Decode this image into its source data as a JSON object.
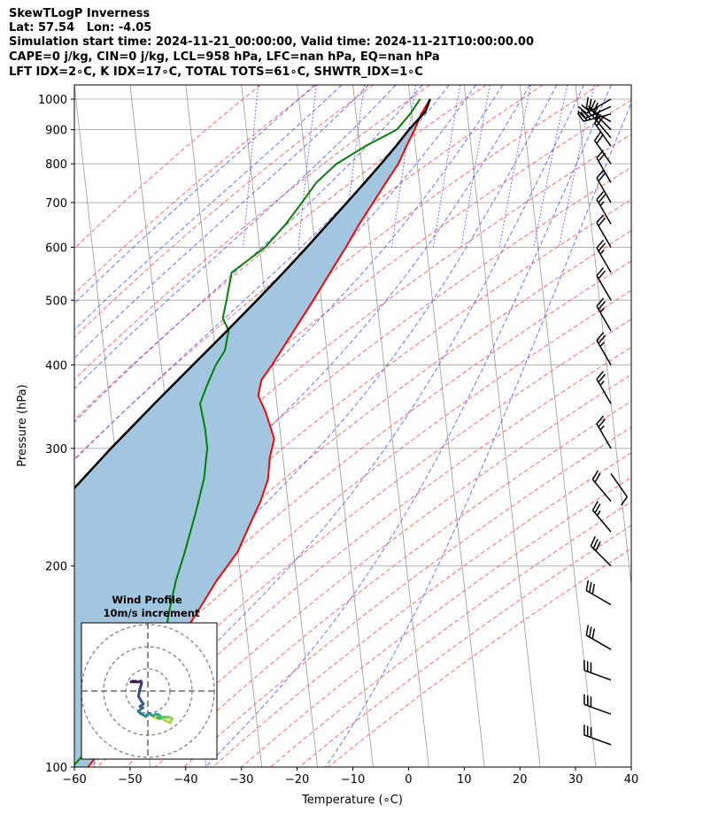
{
  "header": {
    "line1": "SkewTLogP Inverness",
    "line2": "Lat: 57.54   Lon: -4.05",
    "line3": "Simulation start time: 2024-11-21_00:00:00, Valid time: 2024-11-21T10:00:00.00",
    "line4": "CAPE=0 j/kg, CIN=0 j/kg, LCL=958 hPa, LFC=nan hPa, EQ=nan hPa",
    "line5": "LFT IDX=2∘C, K IDX=17∘C, TOTAL TOTS=61∘C, SHWTR_IDX=1∘C"
  },
  "colors": {
    "temperature": "#ff0000",
    "dewpoint": "#008000",
    "parcel": "#000000",
    "shading": "#a3c6e0",
    "dry_adiabat": "#ff6666",
    "moist_adiabat": "#4b5cf0",
    "mixing_ratio": "#7a6cff",
    "isotherm": "#999999"
  },
  "chart_data": {
    "type": "skewt",
    "xlabel": "Temperature (∘C)",
    "ylabel": "Pressure (hPa)",
    "x_ticks": [
      "−60",
      "−50",
      "−40",
      "−30",
      "−20",
      "−10",
      "0",
      "10",
      "20",
      "30",
      "40"
    ],
    "x_tick_values": [
      -60,
      -50,
      -40,
      -30,
      -20,
      -10,
      0,
      10,
      20,
      30,
      40
    ],
    "y_ticks": [
      "100",
      "200",
      "300",
      "400",
      "500",
      "600",
      "700",
      "800",
      "900",
      "1000"
    ],
    "y_tick_values": [
      100,
      200,
      300,
      400,
      500,
      600,
      700,
      800,
      900,
      1000
    ],
    "xlim": [
      -60,
      40
    ],
    "ylim": [
      1050,
      100
    ],
    "temperature": [
      {
        "p": 1000,
        "t": 3.6
      },
      {
        "p": 950,
        "t": 1.7
      },
      {
        "p": 900,
        "t": 0.2
      },
      {
        "p": 850,
        "t": -1.6
      },
      {
        "p": 800,
        "t": -3.4
      },
      {
        "p": 750,
        "t": -6.0
      },
      {
        "p": 700,
        "t": -8.7
      },
      {
        "p": 650,
        "t": -11.6
      },
      {
        "p": 600,
        "t": -14.5
      },
      {
        "p": 550,
        "t": -17.8
      },
      {
        "p": 500,
        "t": -21.4
      },
      {
        "p": 450,
        "t": -25.5
      },
      {
        "p": 400,
        "t": -30.1
      },
      {
        "p": 380,
        "t": -32.3
      },
      {
        "p": 360,
        "t": -33.2
      },
      {
        "p": 340,
        "t": -32.2
      },
      {
        "p": 310,
        "t": -31.2
      },
      {
        "p": 290,
        "t": -32.4
      },
      {
        "p": 270,
        "t": -33.1
      },
      {
        "p": 250,
        "t": -34.9
      },
      {
        "p": 230,
        "t": -37.4
      },
      {
        "p": 210,
        "t": -40.0
      },
      {
        "p": 190,
        "t": -44.4
      },
      {
        "p": 170,
        "t": -48.6
      },
      {
        "p": 150,
        "t": -53.6
      },
      {
        "p": 130,
        "t": -59.6
      },
      {
        "p": 115,
        "t": -64.7
      },
      {
        "p": 100,
        "t": -71.2
      }
    ],
    "dewpoint": [
      {
        "p": 1000,
        "t": 1.8
      },
      {
        "p": 950,
        "t": -0.3
      },
      {
        "p": 900,
        "t": -3.0
      },
      {
        "p": 850,
        "t": -9.0
      },
      {
        "p": 800,
        "t": -14.5
      },
      {
        "p": 750,
        "t": -18.5
      },
      {
        "p": 700,
        "t": -21.5
      },
      {
        "p": 650,
        "t": -24.8
      },
      {
        "p": 600,
        "t": -29.0
      },
      {
        "p": 550,
        "t": -35.5
      },
      {
        "p": 500,
        "t": -37.0
      },
      {
        "p": 470,
        "t": -38.0
      },
      {
        "p": 450,
        "t": -37.2
      },
      {
        "p": 420,
        "t": -38.3
      },
      {
        "p": 400,
        "t": -40.2
      },
      {
        "p": 370,
        "t": -42.4
      },
      {
        "p": 350,
        "t": -43.8
      },
      {
        "p": 320,
        "t": -43.4
      },
      {
        "p": 300,
        "t": -43.4
      },
      {
        "p": 270,
        "t": -44.6
      },
      {
        "p": 240,
        "t": -46.8
      },
      {
        "p": 210,
        "t": -49.5
      },
      {
        "p": 190,
        "t": -51.7
      },
      {
        "p": 170,
        "t": -53.6
      },
      {
        "p": 150,
        "t": -55.4
      },
      {
        "p": 130,
        "t": -59.5
      },
      {
        "p": 115,
        "t": -66.7
      },
      {
        "p": 100,
        "t": -74.0
      }
    ],
    "parcel": [
      {
        "p": 1000,
        "t": 3.6
      },
      {
        "p": 958,
        "t": 2.5
      },
      {
        "p": 900,
        "t": -0.8
      },
      {
        "p": 850,
        "t": -3.5
      },
      {
        "p": 800,
        "t": -6.5
      },
      {
        "p": 750,
        "t": -9.8
      },
      {
        "p": 700,
        "t": -13.4
      },
      {
        "p": 650,
        "t": -17.3
      },
      {
        "p": 600,
        "t": -21.5
      },
      {
        "p": 550,
        "t": -26.2
      },
      {
        "p": 500,
        "t": -31.5
      },
      {
        "p": 450,
        "t": -37.5
      },
      {
        "p": 400,
        "t": -44.3
      },
      {
        "p": 350,
        "t": -52.0
      },
      {
        "p": 300,
        "t": -60.7
      },
      {
        "p": 250,
        "t": -70.5
      },
      {
        "p": 200,
        "t": -81.5
      },
      {
        "p": 150,
        "t": -94.5
      },
      {
        "p": 120,
        "t": -103.5
      },
      {
        "p": 100,
        "t": -110.5
      }
    ],
    "wind_barbs": [
      {
        "p": 1000,
        "speed_kt": 25,
        "dir_deg": 240
      },
      {
        "p": 975,
        "speed_kt": 25,
        "dir_deg": 245
      },
      {
        "p": 950,
        "speed_kt": 25,
        "dir_deg": 255
      },
      {
        "p": 925,
        "speed_kt": 20,
        "dir_deg": 300
      },
      {
        "p": 900,
        "speed_kt": 20,
        "dir_deg": 315
      },
      {
        "p": 875,
        "speed_kt": 20,
        "dir_deg": 320
      },
      {
        "p": 850,
        "speed_kt": 20,
        "dir_deg": 325
      },
      {
        "p": 800,
        "speed_kt": 20,
        "dir_deg": 325
      },
      {
        "p": 750,
        "speed_kt": 20,
        "dir_deg": 330
      },
      {
        "p": 700,
        "speed_kt": 20,
        "dir_deg": 330
      },
      {
        "p": 650,
        "speed_kt": 25,
        "dir_deg": 330
      },
      {
        "p": 600,
        "speed_kt": 20,
        "dir_deg": 330
      },
      {
        "p": 550,
        "speed_kt": 25,
        "dir_deg": 330
      },
      {
        "p": 500,
        "speed_kt": 20,
        "dir_deg": 330
      },
      {
        "p": 450,
        "speed_kt": 25,
        "dir_deg": 330
      },
      {
        "p": 400,
        "speed_kt": 25,
        "dir_deg": 330
      },
      {
        "p": 350,
        "speed_kt": 25,
        "dir_deg": 330
      },
      {
        "p": 300,
        "speed_kt": 25,
        "dir_deg": 330
      },
      {
        "p": 275,
        "speed_kt": 10,
        "dir_deg": 145
      },
      {
        "p": 250,
        "speed_kt": 20,
        "dir_deg": 320
      },
      {
        "p": 225,
        "speed_kt": 25,
        "dir_deg": 320
      },
      {
        "p": 200,
        "speed_kt": 30,
        "dir_deg": 315
      },
      {
        "p": 175,
        "speed_kt": 30,
        "dir_deg": 300
      },
      {
        "p": 150,
        "speed_kt": 30,
        "dir_deg": 300
      },
      {
        "p": 135,
        "speed_kt": 30,
        "dir_deg": 290
      },
      {
        "p": 120,
        "speed_kt": 30,
        "dir_deg": 290
      },
      {
        "p": 108,
        "speed_kt": 30,
        "dir_deg": 290
      }
    ],
    "hodograph": {
      "title": "Wind Profile",
      "subtitle": "10m/s increment",
      "rings_ms": [
        10,
        20,
        30
      ],
      "u_ms": [
        2.5,
        3.5,
        4.5,
        5.2,
        6.0,
        7.6,
        10.1,
        11.0,
        10.0,
        8.7,
        7.8,
        7.2,
        6.3,
        5.0,
        4.2,
        5.6,
        4.5,
        3.5,
        2.5,
        1.6,
        0.9,
        0.2,
        -1.0,
        -2.3,
        -3.3,
        -4.2,
        -3.1,
        -2.2,
        -3.6,
        -2.0,
        -3.0,
        -4.2,
        -3.7,
        -3.2,
        -2.8,
        -3.2,
        -4.0,
        -4.4,
        -6.5,
        -5.5,
        -7.0,
        -7.6
      ],
      "v_ms": [
        -11.5,
        -12.4,
        -12.0,
        -11.4,
        -11.6,
        -13.3,
        -14.3,
        -12.5,
        -12.0,
        -11.9,
        -11.8,
        -11.8,
        -12.2,
        -12.5,
        -12.0,
        -11.2,
        -10.5,
        -10.5,
        -11.3,
        -10.9,
        -10.2,
        -10.2,
        -11.5,
        -10.7,
        -10.2,
        -9.3,
        -8.1,
        -7.6,
        -7.0,
        -5.9,
        -4.5,
        -2.5,
        0.5,
        2.2,
        3.8,
        4.5,
        4.1,
        4.1,
        4.1,
        4.4,
        4.4,
        4.1
      ]
    }
  }
}
